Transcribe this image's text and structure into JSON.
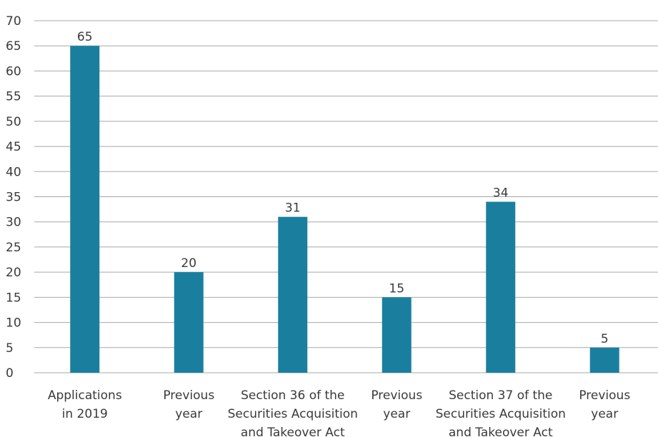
{
  "chart_data": {
    "type": "bar",
    "title": "",
    "xlabel": "",
    "ylabel": "",
    "ylim": [
      0,
      70
    ],
    "ytick_step": 5,
    "yticks": [
      "0",
      "5",
      "10",
      "15",
      "20",
      "25",
      "30",
      "35",
      "40",
      "45",
      "50",
      "55",
      "60",
      "65",
      "70"
    ],
    "grid": true,
    "colors": {
      "bar": "#1a7f9e",
      "grid": "#a8a8a8",
      "text": "#3a3a3a"
    },
    "categories": [
      [
        "Applications",
        "in 2019"
      ],
      [
        "Previous",
        "year"
      ],
      [
        "Section 36 of the",
        "Securities Acquisition",
        "and Takeover Act"
      ],
      [
        "Previous",
        "year"
      ],
      [
        "Section 37 of the",
        "Securities Acquisition",
        "and Takeover Act"
      ],
      [
        "Previous",
        "year"
      ]
    ],
    "values": [
      65,
      20,
      31,
      15,
      34,
      5
    ],
    "value_labels": [
      "65",
      "20",
      "31",
      "15",
      "34",
      "5"
    ]
  }
}
